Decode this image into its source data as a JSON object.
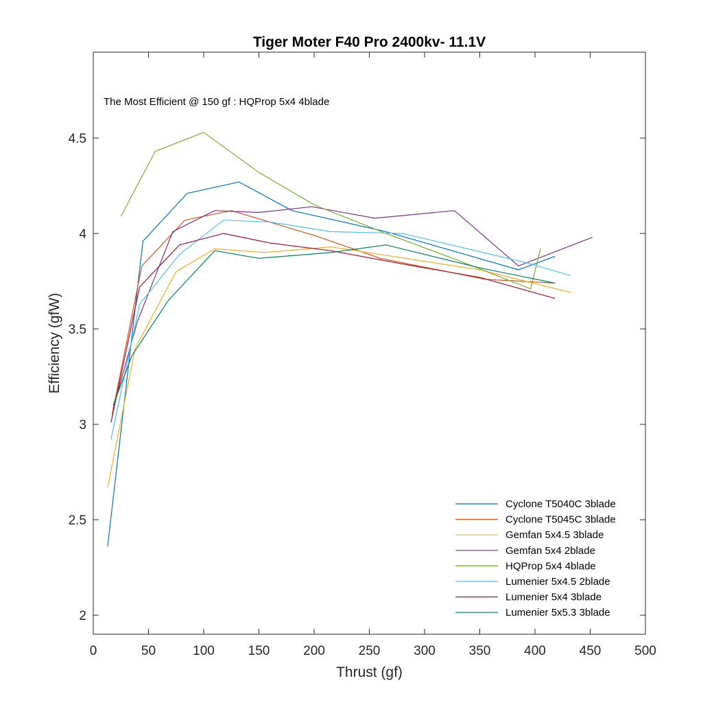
{
  "chart_data": {
    "type": "line",
    "title": "Tiger Moter F40 Pro 2400kv- 11.1V",
    "xlabel": "Thrust (gf)",
    "ylabel": "Efficiency (gfW)",
    "xlim": [
      0,
      500
    ],
    "ylim": [
      1.9,
      4.95
    ],
    "xticks": [
      0,
      50,
      100,
      150,
      200,
      250,
      300,
      350,
      400,
      450,
      500
    ],
    "yticks": [
      2,
      2.5,
      3,
      3.5,
      4,
      4.5
    ],
    "grid": false,
    "legend_position": "bottom-right",
    "annotation": "The Most Efficient @ 150 gf :   HQProp 5x4 4blade",
    "series": [
      {
        "name": "Cyclone T5040C 3blade",
        "color": "#0072BD",
        "points": [
          [
            13,
            2.36
          ],
          [
            45,
            3.96
          ],
          [
            85,
            4.21
          ],
          [
            132,
            4.27
          ],
          [
            180,
            4.12
          ],
          [
            265,
            4.01
          ],
          [
            385,
            3.81
          ],
          [
            418,
            3.88
          ]
        ]
      },
      {
        "name": "Cyclone T5045C 3blade",
        "color": "#D95319",
        "points": [
          [
            17,
            3.05
          ],
          [
            44,
            3.83
          ],
          [
            83,
            4.07
          ],
          [
            125,
            4.12
          ],
          [
            200,
            3.99
          ],
          [
            260,
            3.87
          ],
          [
            355,
            3.76
          ],
          [
            418,
            3.74
          ]
        ]
      },
      {
        "name": "Gemfan 5x4.5 3blade",
        "color": "#EDB120",
        "points": [
          [
            13,
            2.67
          ],
          [
            38,
            3.4
          ],
          [
            75,
            3.8
          ],
          [
            110,
            3.92
          ],
          [
            155,
            3.9
          ],
          [
            215,
            3.93
          ],
          [
            350,
            3.81
          ],
          [
            433,
            3.69
          ]
        ]
      },
      {
        "name": "Gemfan 5x4 2blade",
        "color": "#7E2F8E",
        "points": [
          [
            18,
            3.08
          ],
          [
            40,
            3.54
          ],
          [
            72,
            4.01
          ],
          [
            110,
            4.12
          ],
          [
            150,
            4.11
          ],
          [
            198,
            4.14
          ],
          [
            255,
            4.08
          ],
          [
            327,
            4.12
          ],
          [
            385,
            3.83
          ],
          [
            452,
            3.98
          ]
        ]
      },
      {
        "name": "HQProp 5x4 4blade",
        "color": "#77AC30",
        "points": [
          [
            25,
            4.09
          ],
          [
            56,
            4.43
          ],
          [
            100,
            4.53
          ],
          [
            150,
            4.32
          ],
          [
            200,
            4.15
          ],
          [
            265,
            4.0
          ],
          [
            330,
            3.86
          ],
          [
            396,
            3.71
          ],
          [
            405,
            3.92
          ]
        ]
      },
      {
        "name": "Lumenier 5x4.5 2blade",
        "color": "#4DBEEE",
        "points": [
          [
            16,
            2.92
          ],
          [
            42,
            3.63
          ],
          [
            78,
            3.89
          ],
          [
            118,
            4.07
          ],
          [
            160,
            4.06
          ],
          [
            215,
            4.01
          ],
          [
            280,
            4.0
          ],
          [
            390,
            3.85
          ],
          [
            432,
            3.78
          ]
        ]
      },
      {
        "name": "Lumenier 5x4 3blade",
        "color": "#A2142F",
        "points": [
          [
            16,
            3.01
          ],
          [
            42,
            3.72
          ],
          [
            78,
            3.94
          ],
          [
            118,
            4.0
          ],
          [
            160,
            3.95
          ],
          [
            215,
            3.91
          ],
          [
            290,
            3.83
          ],
          [
            350,
            3.77
          ],
          [
            418,
            3.66
          ]
        ]
      },
      {
        "name": "Lumenier 5x5.3 3blade",
        "color": "#007F5F",
        "points": [
          [
            18,
            3.1
          ],
          [
            35,
            3.36
          ],
          [
            68,
            3.65
          ],
          [
            110,
            3.91
          ],
          [
            150,
            3.87
          ],
          [
            215,
            3.9
          ],
          [
            265,
            3.94
          ],
          [
            350,
            3.82
          ],
          [
            418,
            3.74
          ]
        ]
      }
    ]
  }
}
